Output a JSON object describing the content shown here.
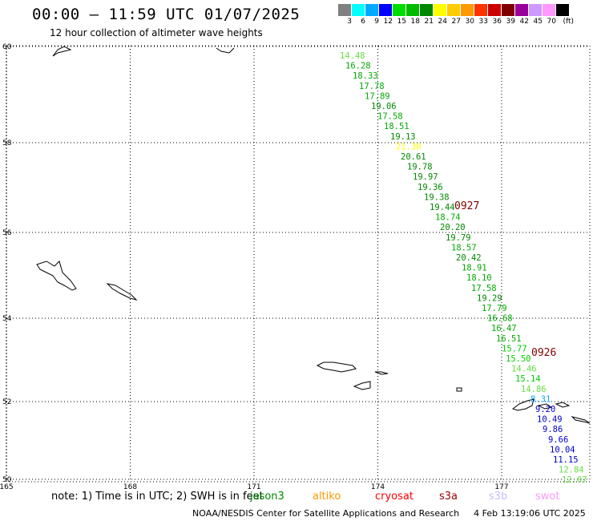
{
  "header": {
    "title": "00:00 – 11:59 UTC 01/07/2025",
    "subtitle": "12 hour collection of altimeter wave heights"
  },
  "legend": {
    "labels": [
      "3",
      "6",
      "9",
      "12",
      "15",
      "18",
      "21",
      "24",
      "27",
      "30",
      "33",
      "36",
      "39",
      "42",
      "45",
      "70",
      "(ft)"
    ],
    "colors": [
      "#808080",
      "#00ffff",
      "#00aaff",
      "#0000ff",
      "#00dd00",
      "#00bb00",
      "#008800",
      "#ffff00",
      "#ffcc00",
      "#ff9900",
      "#ff3300",
      "#cc0000",
      "#800000",
      "#990099",
      "#cc99ff",
      "#ff99ff",
      "#000000"
    ]
  },
  "map": {
    "lon_ticks": [
      "165",
      "168",
      "171",
      "174",
      "177"
    ],
    "lat_ticks": [
      "60",
      "58",
      "56",
      "54",
      "52",
      "50"
    ],
    "lon_values": [
      165,
      168,
      171,
      174,
      177
    ],
    "lat_values": [
      60,
      58,
      56,
      54,
      52,
      50
    ]
  },
  "tracks": [
    {
      "id": "pass-main",
      "color_mode": "green",
      "values": [
        "14.48",
        "16.28",
        "18.33",
        "17.78",
        "17.89",
        "19.06",
        "17.58",
        "18.51",
        "19.13",
        "21.30",
        "20.61",
        "19.78",
        "19.97",
        "19.36",
        "19.38",
        "19.44",
        "18.74",
        "20.20",
        "19.79",
        "18.57",
        "20.42",
        "18.91",
        "18.10",
        "17.58",
        "19.29",
        "17.79",
        "16.68",
        "16.47",
        "16.51",
        "15.77",
        "15.50",
        "14.46",
        "15.14",
        "14.86",
        "8.31",
        "9.20",
        "10.49",
        "9.86",
        "9.66",
        "10.04",
        "11.15",
        "12.84",
        "12.07"
      ],
      "colors": [
        "#66dd44",
        "#00aa00",
        "#00aa00",
        "#00aa00",
        "#00aa00",
        "#008800",
        "#00aa00",
        "#00aa00",
        "#008800",
        "#ffff00",
        "#008800",
        "#008800",
        "#008800",
        "#008800",
        "#008800",
        "#008800",
        "#00aa00",
        "#008800",
        "#008800",
        "#00aa00",
        "#008800",
        "#00aa00",
        "#00aa00",
        "#00aa00",
        "#008800",
        "#00aa00",
        "#00aa00",
        "#00aa00",
        "#00aa00",
        "#00cc00",
        "#00cc00",
        "#66dd44",
        "#00cc00",
        "#66dd44",
        "#00aaff",
        "#0000cc",
        "#0000cc",
        "#0000cc",
        "#0000cc",
        "#0000cc",
        "#0000cc",
        "#66dd44",
        "#66dd44"
      ]
    }
  ],
  "time_tags": [
    {
      "label": "0927",
      "color": "#800000"
    },
    {
      "label": "0926",
      "color": "#800000"
    }
  ],
  "satellites": [
    {
      "name": "jason3",
      "color": "#008800"
    },
    {
      "name": "altiko",
      "color": "#ff9900"
    },
    {
      "name": "cryosat",
      "color": "#ff0000"
    },
    {
      "name": "s3a",
      "color": "#990000"
    },
    {
      "name": "s3b",
      "color": "#ccbbff"
    },
    {
      "name": "swot",
      "color": "#ff99ff"
    }
  ],
  "note": "note: 1) Time is in UTC; 2) SWH is in feet",
  "footer": {
    "credit": "NOAA/NESDIS Center for Satellite Applications and Research",
    "timestamp": "4 Feb 13:19:06 UTC 2025"
  }
}
